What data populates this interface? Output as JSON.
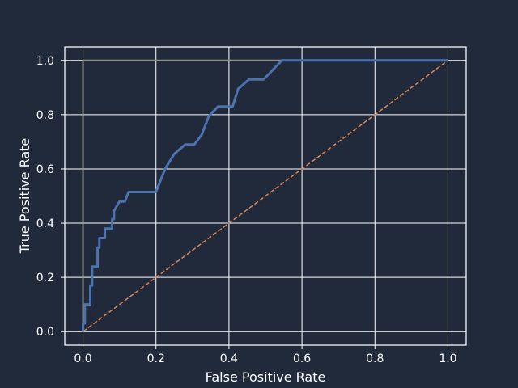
{
  "chart_data": {
    "type": "line",
    "title": "",
    "xlabel": "False Positive Rate",
    "ylabel": "True Positive Rate",
    "xlim": [
      -0.05,
      1.05
    ],
    "ylim": [
      -0.05,
      1.05
    ],
    "xticks": [
      0.0,
      0.2,
      0.4,
      0.6,
      0.8,
      1.0
    ],
    "yticks": [
      0.0,
      0.2,
      0.4,
      0.6,
      0.8,
      1.0
    ],
    "xtick_labels": [
      "0.0",
      "0.2",
      "0.4",
      "0.6",
      "0.8",
      "1.0"
    ],
    "ytick_labels": [
      "0.0",
      "0.2",
      "0.4",
      "0.6",
      "0.8",
      "1.0"
    ],
    "grid": true,
    "legend": null,
    "series": [
      {
        "color": "#4c72b0",
        "style": "solid",
        "points": [
          [
            0.0,
            0.0
          ],
          [
            0.0,
            0.03
          ],
          [
            0.005,
            0.03
          ],
          [
            0.005,
            0.1
          ],
          [
            0.02,
            0.1
          ],
          [
            0.02,
            0.17
          ],
          [
            0.025,
            0.17
          ],
          [
            0.025,
            0.24
          ],
          [
            0.04,
            0.24
          ],
          [
            0.04,
            0.31
          ],
          [
            0.045,
            0.31
          ],
          [
            0.045,
            0.345
          ],
          [
            0.06,
            0.345
          ],
          [
            0.06,
            0.38
          ],
          [
            0.08,
            0.38
          ],
          [
            0.08,
            0.415
          ],
          [
            0.085,
            0.415
          ],
          [
            0.085,
            0.445
          ],
          [
            0.1,
            0.48
          ],
          [
            0.115,
            0.48
          ],
          [
            0.125,
            0.515
          ],
          [
            0.2,
            0.515
          ],
          [
            0.225,
            0.6
          ],
          [
            0.25,
            0.655
          ],
          [
            0.28,
            0.69
          ],
          [
            0.305,
            0.69
          ],
          [
            0.325,
            0.725
          ],
          [
            0.345,
            0.795
          ],
          [
            0.37,
            0.83
          ],
          [
            0.41,
            0.83
          ],
          [
            0.425,
            0.895
          ],
          [
            0.455,
            0.93
          ],
          [
            0.495,
            0.93
          ],
          [
            0.545,
            1.0
          ],
          [
            1.0,
            1.0
          ]
        ]
      },
      {
        "color": "#dd8452",
        "style": "dashed",
        "points": [
          [
            0.0,
            0.0
          ],
          [
            1.0,
            1.0
          ]
        ]
      },
      {
        "color": "#8c8c8c",
        "style": "solid",
        "points": [
          [
            0.0,
            0.0
          ],
          [
            0.0,
            1.0
          ],
          [
            1.0,
            1.0
          ]
        ]
      }
    ]
  }
}
